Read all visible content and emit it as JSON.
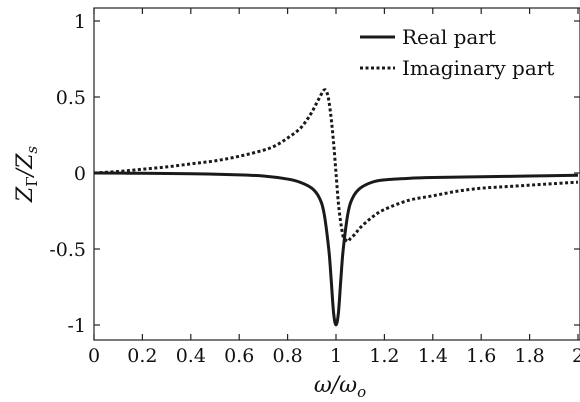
{
  "chart_data": {
    "type": "line",
    "title": "",
    "xlabel": "ω/ω",
    "xlabel_sub": "o",
    "ylabel": "Z",
    "ylabel_sub1": "Γ",
    "ylabel_mid": "/Z",
    "ylabel_sub2": "s",
    "xlim": [
      0,
      2
    ],
    "ylim": [
      -1.1,
      1.1
    ],
    "x_ticks": [
      0,
      0.2,
      0.4,
      0.6,
      0.8,
      1,
      1.2,
      1.4,
      1.6,
      1.8,
      2
    ],
    "x_tick_labels": [
      "0",
      "0.2",
      "0.4",
      "0.6",
      "0.8",
      "1",
      "1.2",
      "1.4",
      "1.6",
      "1.8",
      "2"
    ],
    "y_ticks": [
      1,
      0.5,
      0,
      -0.5,
      -1
    ],
    "y_tick_labels": [
      "1",
      "0.5",
      "0",
      "-0.5",
      "-1"
    ],
    "grid": false,
    "legend_position": "top-right",
    "series": [
      {
        "name": "Real part",
        "style": "solid",
        "color": "#1a1a1a",
        "x": [
          0,
          0.2,
          0.4,
          0.6,
          0.7,
          0.8,
          0.85,
          0.9,
          0.93,
          0.95,
          0.97,
          0.98,
          0.99,
          1.0,
          1.01,
          1.02,
          1.03,
          1.05,
          1.07,
          1.1,
          1.15,
          1.2,
          1.3,
          1.4,
          1.6,
          1.8,
          2.0
        ],
        "y": [
          0,
          -0.002,
          -0.005,
          -0.012,
          -0.02,
          -0.04,
          -0.06,
          -0.1,
          -0.16,
          -0.26,
          -0.5,
          -0.7,
          -0.92,
          -1.0,
          -0.92,
          -0.7,
          -0.5,
          -0.26,
          -0.16,
          -0.1,
          -0.06,
          -0.045,
          -0.035,
          -0.03,
          -0.025,
          -0.02,
          -0.015
        ]
      },
      {
        "name": "Imaginary part",
        "style": "dotted",
        "color": "#1a1a1a",
        "x": [
          0,
          0.1,
          0.2,
          0.3,
          0.4,
          0.5,
          0.6,
          0.7,
          0.75,
          0.8,
          0.85,
          0.88,
          0.9,
          0.92,
          0.94,
          0.95,
          0.96,
          0.97,
          0.98,
          0.99,
          1.0,
          1.01,
          1.02,
          1.03,
          1.04,
          1.05,
          1.06,
          1.08,
          1.1,
          1.15,
          1.2,
          1.3,
          1.4,
          1.5,
          1.6,
          1.7,
          1.8,
          1.9,
          2.0
        ],
        "y": [
          0.0,
          0.01,
          0.025,
          0.04,
          0.06,
          0.08,
          0.11,
          0.15,
          0.18,
          0.23,
          0.29,
          0.35,
          0.4,
          0.46,
          0.52,
          0.545,
          0.54,
          0.48,
          0.36,
          0.2,
          0.0,
          -0.2,
          -0.33,
          -0.42,
          -0.44,
          -0.45,
          -0.43,
          -0.4,
          -0.36,
          -0.29,
          -0.24,
          -0.18,
          -0.15,
          -0.12,
          -0.1,
          -0.09,
          -0.08,
          -0.07,
          -0.06
        ]
      }
    ]
  }
}
